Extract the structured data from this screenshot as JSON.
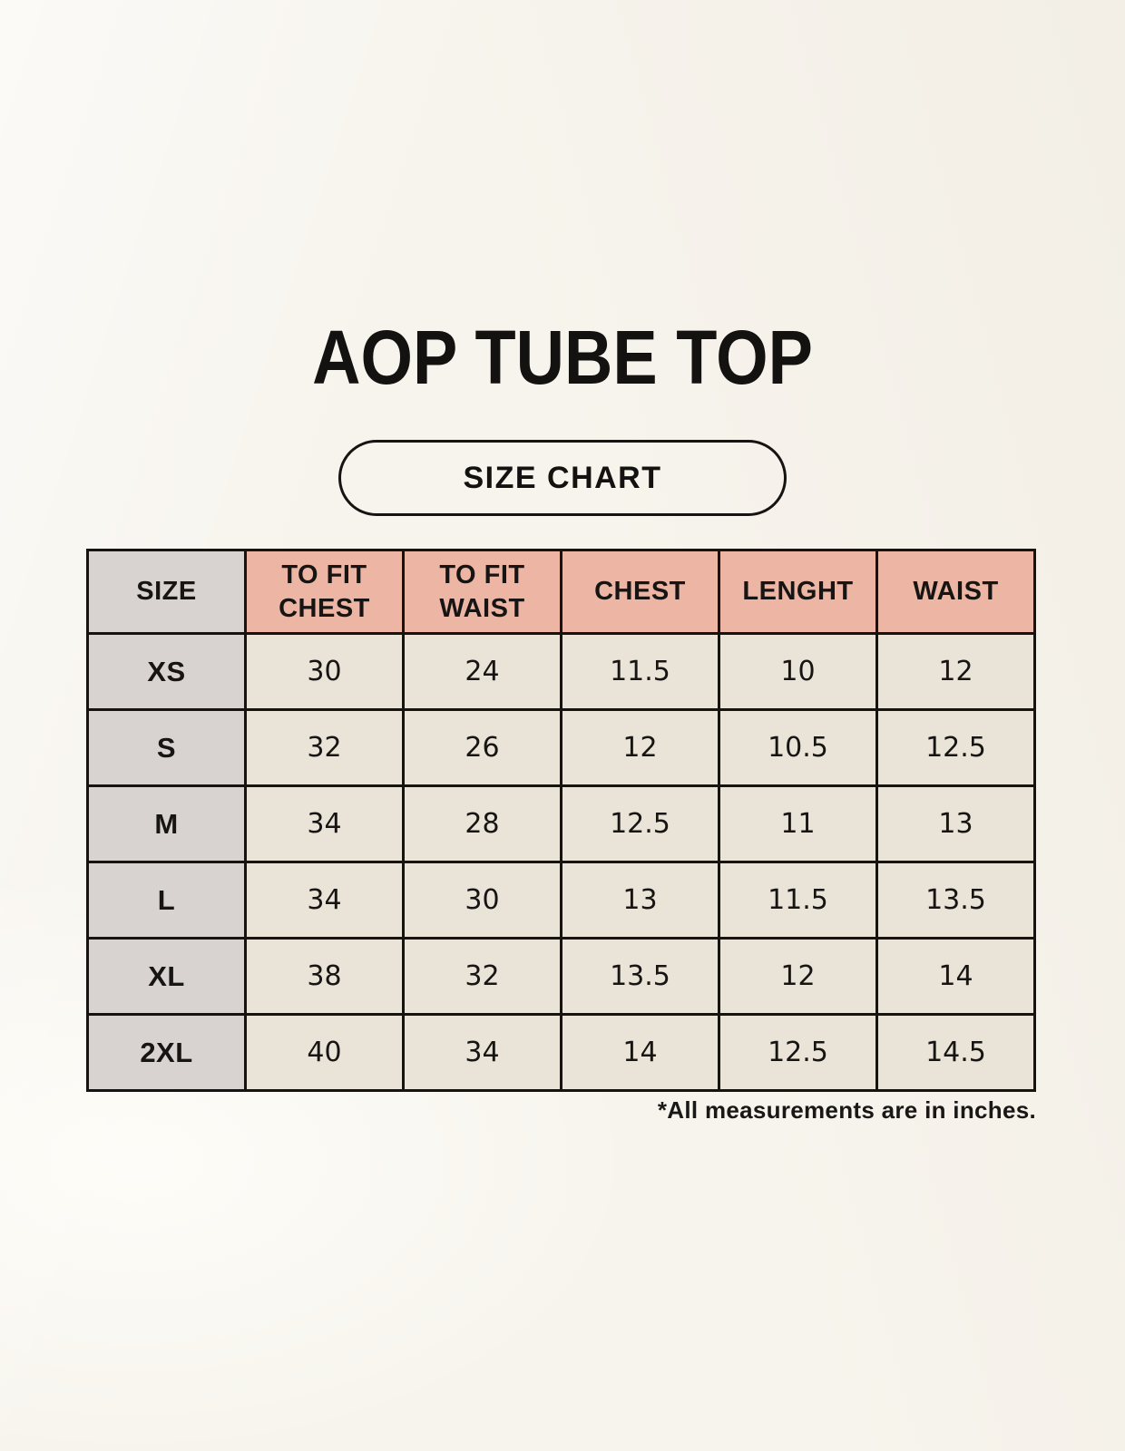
{
  "header": {
    "title": "AOP TUBE TOP",
    "badge_label": "SIZE CHART"
  },
  "chart_data": {
    "type": "table",
    "title": "AOP TUBE TOP — SIZE CHART",
    "columns": [
      "SIZE",
      "TO FIT CHEST",
      "TO FIT WAIST",
      "CHEST",
      "LENGHT",
      "WAIST"
    ],
    "rows": [
      [
        "XS",
        "30",
        "24",
        "11.5",
        "10",
        "12"
      ],
      [
        "S",
        "32",
        "26",
        "12",
        "10.5",
        "12.5"
      ],
      [
        "M",
        "34",
        "28",
        "12.5",
        "11",
        "13"
      ],
      [
        "L",
        "34",
        "30",
        "13",
        "11.5",
        "13.5"
      ],
      [
        "XL",
        "38",
        "32",
        "13.5",
        "12",
        "14"
      ],
      [
        "2XL",
        "40",
        "34",
        "14",
        "12.5",
        "14.5"
      ]
    ],
    "units": "inches"
  },
  "footnote": "*All measurements are in inches.",
  "colors": {
    "background": "#f7f4ed",
    "header_pink": "#ecb5a4",
    "size_gray": "#d8d3d1",
    "cell_cream": "#eae4d8",
    "border_black": "#161412"
  }
}
